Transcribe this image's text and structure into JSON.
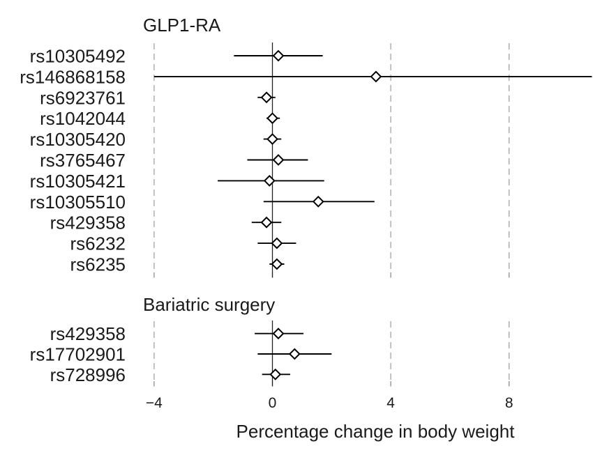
{
  "chart_data": {
    "type": "scatter",
    "subtype": "forest-plot",
    "xlabel": "Percentage change in body weight",
    "x_axis": {
      "tick_values": [
        -4,
        0,
        4,
        8
      ],
      "tick_labels": [
        "−4",
        "0",
        "4",
        "8"
      ]
    },
    "xlim": [
      -4.2,
      10.8
    ],
    "grid": "vertical dashed gridlines at each tick, solid reference line at 0",
    "legend_position": "none",
    "panels": [
      {
        "title": "GLP1-RA",
        "rows": [
          {
            "label": "rs10305492",
            "estimate": 0.2,
            "ci_low": -1.3,
            "ci_high": 1.7
          },
          {
            "label": "rs146868158",
            "estimate": 3.5,
            "ci_low": -4.0,
            "ci_high": 10.8,
            "ci_high_clipped": true
          },
          {
            "label": "rs6923761",
            "estimate": -0.2,
            "ci_low": -0.5,
            "ci_high": 0.1
          },
          {
            "label": "rs1042044",
            "estimate": 0.0,
            "ci_low": -0.2,
            "ci_high": 0.25
          },
          {
            "label": "rs10305420",
            "estimate": 0.0,
            "ci_low": -0.3,
            "ci_high": 0.3
          },
          {
            "label": "rs3765467",
            "estimate": 0.2,
            "ci_low": -0.85,
            "ci_high": 1.2
          },
          {
            "label": "rs10305421",
            "estimate": -0.1,
            "ci_low": -1.85,
            "ci_high": 1.75
          },
          {
            "label": "rs10305510",
            "estimate": 1.55,
            "ci_low": -0.3,
            "ci_high": 3.45
          },
          {
            "label": "rs429358",
            "estimate": -0.2,
            "ci_low": -0.7,
            "ci_high": 0.3
          },
          {
            "label": "rs6232",
            "estimate": 0.15,
            "ci_low": -0.5,
            "ci_high": 0.8
          },
          {
            "label": "rs6235",
            "estimate": 0.15,
            "ci_low": -0.1,
            "ci_high": 0.4
          }
        ]
      },
      {
        "title": "Bariatric surgery",
        "rows": [
          {
            "label": "rs429358",
            "estimate": 0.2,
            "ci_low": -0.6,
            "ci_high": 1.05
          },
          {
            "label": "rs17702901",
            "estimate": 0.75,
            "ci_low": -0.5,
            "ci_high": 2.0
          },
          {
            "label": "rs728996",
            "estimate": 0.1,
            "ci_low": -0.35,
            "ci_high": 0.6
          }
        ]
      }
    ],
    "colors": {
      "line": "#000000",
      "zero_line": "#222222",
      "grid": "#a3a3a3",
      "axis_tick": "#8c8c8c",
      "text": "#1a1a1a",
      "marker_fill": "#ffffff"
    }
  }
}
